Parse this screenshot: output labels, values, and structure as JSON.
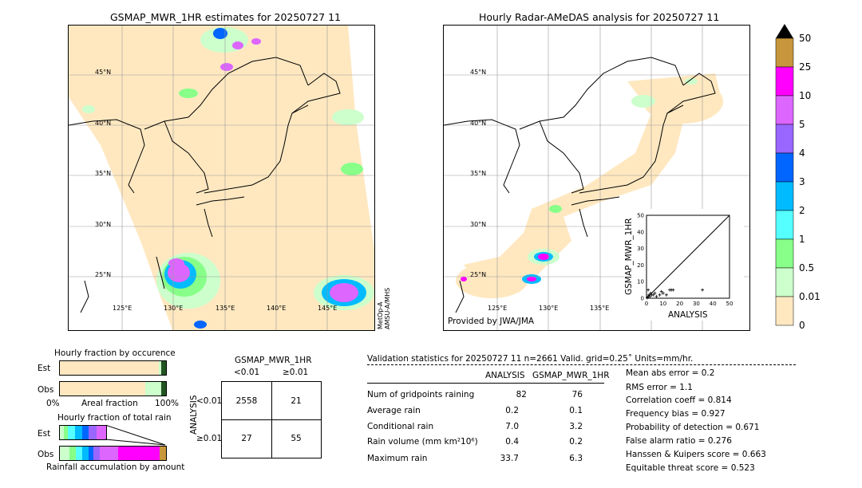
{
  "left_map": {
    "title": "GSMAP_MWR_1HR estimates for 20250727 11",
    "side_label_1": "MetOp-A",
    "side_label_2": "AMSU-A/MHS",
    "lat_labels": [
      "45°N",
      "40°N",
      "35°N",
      "30°N",
      "25°N"
    ],
    "lon_labels": [
      "125°E",
      "130°E",
      "135°E",
      "140°E",
      "145°E"
    ]
  },
  "right_map": {
    "title": "Hourly Radar-AMeDAS analysis for 20250727 11",
    "credit": "Provided by JWA/JMA",
    "lat_labels": [
      "45°N",
      "40°N",
      "35°N",
      "30°N",
      "25°N"
    ],
    "lon_labels": [
      "125°E",
      "130°E",
      "135°E"
    ]
  },
  "colorbar": {
    "labels": [
      "50",
      "25",
      "10",
      "5",
      "4",
      "3",
      "2",
      "1",
      "0.5",
      "0.01",
      "0"
    ],
    "colors": [
      "#c8963c",
      "#ff00ff",
      "#dd66ff",
      "#9966ff",
      "#0066ff",
      "#00bbff",
      "#55ffff",
      "#88ff88",
      "#ccffcc",
      "#ffe8c0"
    ]
  },
  "scatter": {
    "xlabel": "ANALYSIS",
    "ylabel": "GSMAP_MWR_1HR",
    "ticks": [
      "0",
      "10",
      "20",
      "30",
      "40",
      "50"
    ]
  },
  "fraction": {
    "occ_title": "Hourly fraction by occurence",
    "total_title": "Hourly fraction of total rain",
    "est_label": "Est",
    "obs_label": "Obs",
    "axis_left": "0%",
    "axis_mid": "Areal fraction",
    "axis_right": "100%",
    "bottom_label": "Rainfall accumulation by amount"
  },
  "contingency": {
    "title": "GSMAP_MWR_1HR",
    "col_labels": [
      "<0.01",
      "≥0.01"
    ],
    "row_labels": [
      "<0.01",
      "≥0.01"
    ],
    "side_label": "ANALYSIS",
    "cells": [
      "2558",
      "21",
      "27",
      "55"
    ]
  },
  "validation": {
    "header": "Validation statistics for 20250727 11  n=2661 Valid. grid=0.25˚ Units=mm/hr.",
    "col_analysis": "ANALYSIS",
    "col_gsmap": "GSMAP_MWR_1HR",
    "rows": [
      {
        "label": "Num of gridpoints raining",
        "a": "82",
        "g": "76"
      },
      {
        "label": "Average rain",
        "a": "0.2",
        "g": "0.1"
      },
      {
        "label": "Conditional rain",
        "a": "7.0",
        "g": "3.2"
      },
      {
        "label": "Rain volume (mm km²10⁶)",
        "a": "0.4",
        "g": "0.2"
      },
      {
        "label": "Maximum rain",
        "a": "33.7",
        "g": "6.3"
      }
    ],
    "scores": [
      "Mean abs error =    0.2",
      "RMS error =    1.1",
      "Correlation coeff =  0.814",
      "Frequency bias =  0.927",
      "Probability of detection =  0.671",
      "False alarm ratio =  0.276",
      "Hanssen & Kuipers score =  0.663",
      "Equitable threat score =  0.523"
    ]
  },
  "chart_data": {
    "type": "scatter",
    "title": "",
    "xlabel": "ANALYSIS",
    "ylabel": "GSMAP_MWR_1HR",
    "xlim": [
      0,
      50
    ],
    "ylim": [
      0,
      50
    ],
    "points": [
      {
        "x": 0.5,
        "y": 0.3
      },
      {
        "x": 1,
        "y": 1
      },
      {
        "x": 1.5,
        "y": 2
      },
      {
        "x": 2,
        "y": 1
      },
      {
        "x": 3,
        "y": 2
      },
      {
        "x": 2.5,
        "y": 3
      },
      {
        "x": 4,
        "y": 2
      },
      {
        "x": 5,
        "y": 3
      },
      {
        "x": 1,
        "y": 5
      },
      {
        "x": 6,
        "y": 1
      },
      {
        "x": 8,
        "y": 2
      },
      {
        "x": 10,
        "y": 3
      },
      {
        "x": 12,
        "y": 2
      },
      {
        "x": 14,
        "y": 5
      },
      {
        "x": 15,
        "y": 5
      },
      {
        "x": 16,
        "y": 5
      },
      {
        "x": 9,
        "y": 4
      },
      {
        "x": 33.7,
        "y": 5
      }
    ]
  }
}
